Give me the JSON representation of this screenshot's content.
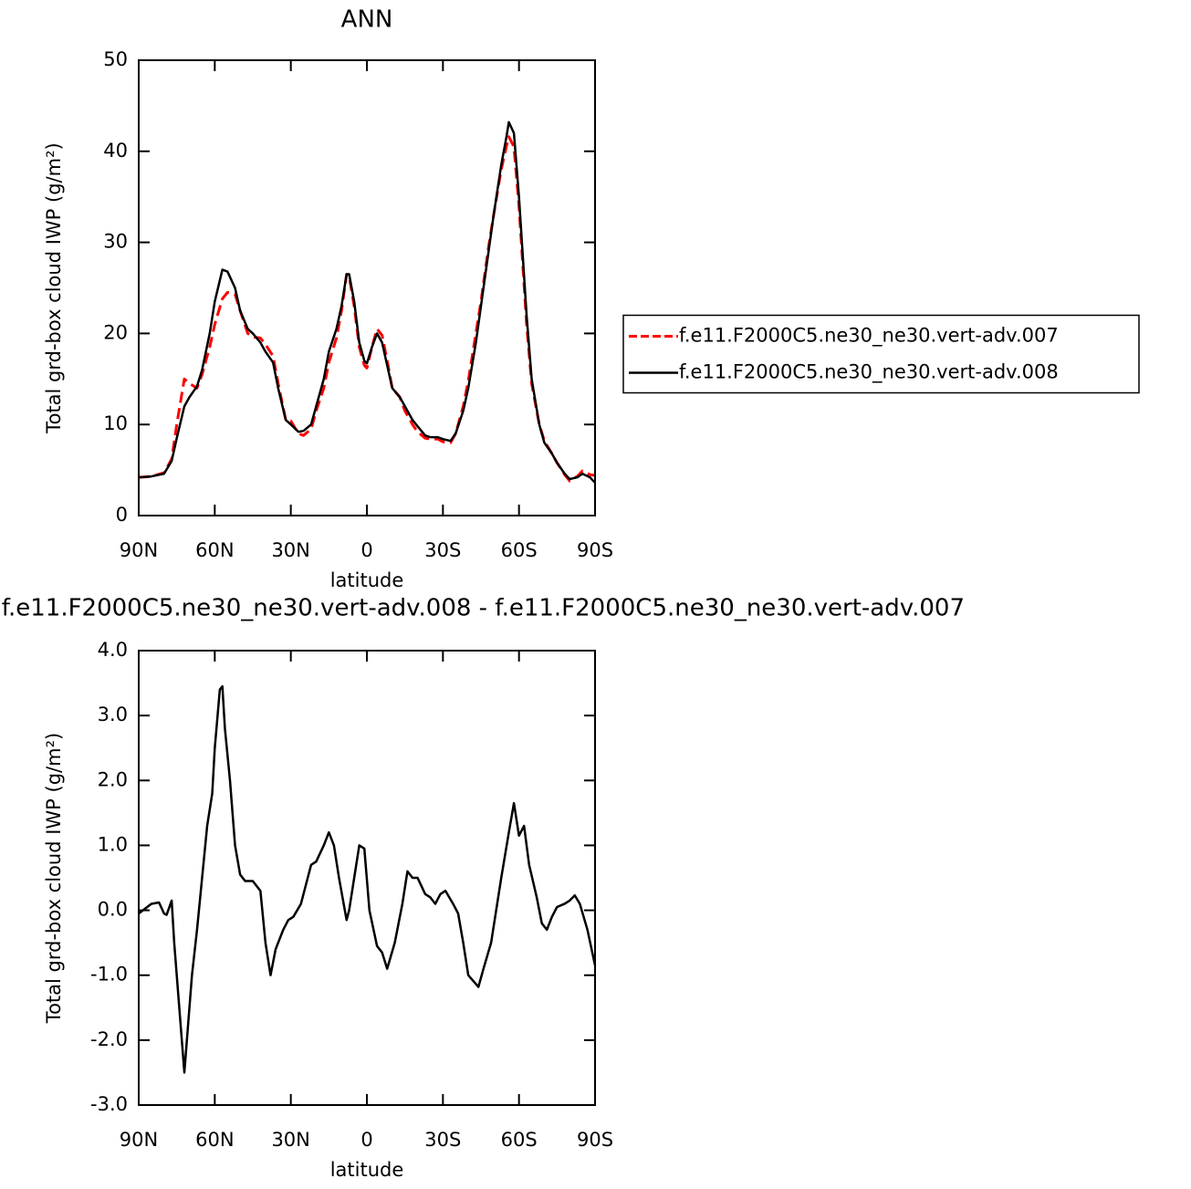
{
  "chart_data": [
    {
      "type": "line",
      "title": "ANN",
      "xlabel": "latitude",
      "ylabel": "Total grd-box cloud IWP (g/m²)",
      "x": [
        90,
        85,
        80,
        77,
        75,
        72,
        70,
        67,
        65,
        62,
        60,
        57,
        55,
        52,
        50,
        47,
        45,
        42,
        40,
        37,
        35,
        32,
        30,
        27,
        25,
        22,
        20,
        17,
        15,
        12,
        10,
        8,
        7,
        5,
        3,
        1,
        0,
        -2,
        -4,
        -6,
        -8,
        -10,
        -13,
        -15,
        -18,
        -20,
        -23,
        -25,
        -28,
        -30,
        -33,
        -35,
        -38,
        -40,
        -43,
        -45,
        -48,
        -50,
        -53,
        -55,
        -56,
        -58,
        -60,
        -63,
        -65,
        -68,
        -70,
        -73,
        -75,
        -78,
        -80,
        -83,
        -85,
        -88,
        -90
      ],
      "xlim": [
        90,
        -90
      ],
      "xticks": [
        {
          "value": 90,
          "label": "90N"
        },
        {
          "value": 60,
          "label": "60N"
        },
        {
          "value": 30,
          "label": "30N"
        },
        0,
        {
          "value": -30,
          "label": "30S"
        },
        {
          "value": -60,
          "label": "60S"
        },
        {
          "value": -90,
          "label": "90S"
        }
      ],
      "ylim": [
        0,
        50
      ],
      "yticks": [
        0,
        10,
        20,
        30,
        40,
        50
      ],
      "legend": "right",
      "series": [
        {
          "name": "f.e11.F2000C5.ne30_ne30.vert-adv.007",
          "color": "#ff0000",
          "dashed": true,
          "values": [
            4.2,
            4.3,
            4.7,
            6.2,
            10,
            15,
            14.5,
            14,
            15.5,
            18.5,
            21,
            23.8,
            24.5,
            24.3,
            22.5,
            20,
            19.6,
            19.5,
            18.8,
            17.5,
            14.5,
            10.5,
            10.4,
            9,
            8.8,
            9.5,
            11.5,
            14,
            16.8,
            19.5,
            22.5,
            26.5,
            26.3,
            23,
            18.5,
            16.5,
            16.2,
            18.5,
            20.5,
            19.8,
            17,
            14,
            13,
            11.5,
            10,
            9.2,
            8.5,
            8.4,
            8.4,
            8.1,
            8,
            9,
            12,
            14.8,
            20,
            23.5,
            29.5,
            33,
            38,
            40.5,
            41.6,
            40.5,
            34,
            21,
            14.5,
            10,
            8.2,
            6.8,
            5.8,
            4.5,
            3.8,
            4.3,
            4.9,
            4.5,
            4.4
          ]
        },
        {
          "name": "f.e11.F2000C5.ne30_ne30.vert-adv.008",
          "color": "#000000",
          "dashed": false,
          "values": [
            4.2,
            4.3,
            4.6,
            6,
            8.5,
            12,
            13,
            14.2,
            16,
            20,
            23.5,
            27,
            26.8,
            25,
            22.5,
            20.5,
            20,
            19,
            18,
            16.8,
            14,
            10.5,
            10,
            9.2,
            9.3,
            10,
            12,
            15,
            18,
            20.5,
            23,
            26.5,
            26.5,
            23.5,
            19,
            17,
            16.7,
            18.5,
            20,
            19,
            16.5,
            14,
            13,
            12,
            10.5,
            9.8,
            8.8,
            8.6,
            8.6,
            8.4,
            8.2,
            9,
            11.5,
            14,
            19,
            23,
            29,
            33,
            38.5,
            41.5,
            43.2,
            42,
            35,
            22,
            15,
            10,
            8,
            6.8,
            5.8,
            4.6,
            4,
            4.2,
            4.6,
            4.2,
            3.6
          ]
        }
      ]
    },
    {
      "type": "line",
      "title": "f.e11.F2000C5.ne30_ne30.vert-adv.008 - f.e11.F2000C5.ne30_ne30.vert-adv.007",
      "xlabel": "latitude",
      "ylabel": "Total grd-box cloud IWP (g/m²)",
      "x": [
        90,
        85,
        82,
        80,
        79,
        77,
        76,
        74,
        72,
        71,
        69,
        67,
        65,
        63,
        61,
        60,
        58,
        57,
        56,
        54,
        52,
        50,
        48,
        45,
        42,
        40,
        38,
        36,
        33,
        31,
        29,
        26,
        24,
        22,
        20,
        17,
        15,
        13,
        11,
        8,
        7,
        5,
        3,
        1,
        -1,
        -4,
        -6,
        -8,
        -11,
        -14,
        -16,
        -18,
        -20,
        -23,
        -25,
        -27,
        -29,
        -31,
        -34,
        -36,
        -38,
        -40,
        -44,
        -46,
        -49,
        -53,
        -56,
        -58,
        -60,
        -62,
        -64,
        -67,
        -69,
        -71,
        -73,
        -75,
        -78,
        -80,
        -82,
        -84,
        -87,
        -90
      ],
      "xlim": [
        90,
        -90
      ],
      "xticks": [
        {
          "value": 90,
          "label": "90N"
        },
        {
          "value": 60,
          "label": "60N"
        },
        {
          "value": 30,
          "label": "30N"
        },
        0,
        {
          "value": -30,
          "label": "30S"
        },
        {
          "value": -60,
          "label": "60S"
        },
        {
          "value": -90,
          "label": "90S"
        }
      ],
      "ylim": [
        -3,
        4
      ],
      "yticks": [
        {
          "value": -3,
          "label": "-3.0"
        },
        {
          "value": -2,
          "label": "-2.0"
        },
        {
          "value": -1,
          "label": "-1.0"
        },
        {
          "value": 0,
          "label": "0.0"
        },
        {
          "value": 1,
          "label": "1.0"
        },
        {
          "value": 2,
          "label": "2.0"
        },
        {
          "value": 3,
          "label": "3.0"
        },
        {
          "value": 4,
          "label": "4.0"
        }
      ],
      "series": [
        {
          "color": "#000000",
          "dashed": false,
          "values": [
            -0.05,
            0.1,
            0.12,
            -0.05,
            -0.07,
            0.15,
            -0.5,
            -1.5,
            -2.5,
            -2.0,
            -1,
            -0.3,
            0.5,
            1.3,
            1.8,
            2.5,
            3.4,
            3.45,
            2.8,
            2.0,
            1.0,
            0.55,
            0.45,
            0.45,
            0.3,
            -0.5,
            -1.0,
            -0.6,
            -0.3,
            -0.15,
            -0.1,
            0.1,
            0.4,
            0.7,
            0.75,
            1.0,
            1.2,
            1.0,
            0.5,
            -0.15,
            0.0,
            0.5,
            1.0,
            0.95,
            0.0,
            -0.55,
            -0.65,
            -0.9,
            -0.5,
            0.1,
            0.6,
            0.5,
            0.5,
            0.25,
            0.2,
            0.1,
            0.25,
            0.3,
            0.1,
            -0.05,
            -0.5,
            -1.0,
            -1.18,
            -0.9,
            -0.5,
            0.5,
            1.2,
            1.65,
            1.15,
            1.3,
            0.7,
            0.2,
            -0.2,
            -0.3,
            -0.1,
            0.05,
            0.1,
            0.15,
            0.23,
            0.1,
            -0.3,
            -0.85
          ]
        }
      ]
    }
  ]
}
